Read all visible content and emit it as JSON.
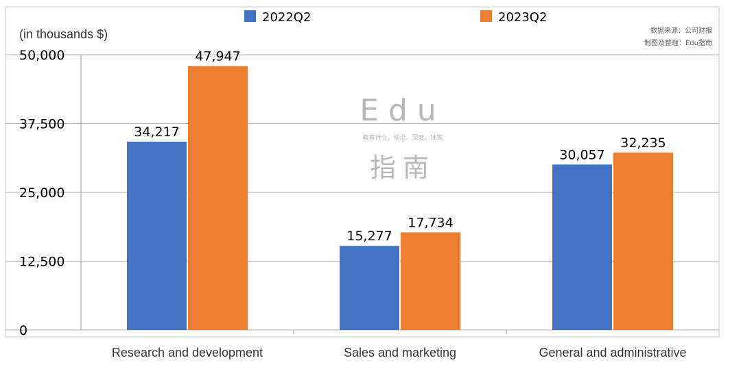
{
  "chart_data": {
    "type": "bar",
    "categories": [
      "Research and development",
      "Sales and marketing",
      "General and administrative"
    ],
    "series": [
      {
        "name": "2022Q2",
        "values": [
          34217,
          15277,
          30057
        ],
        "labels": [
          "34,217",
          "15,277",
          "30,057"
        ]
      },
      {
        "name": "2023Q2",
        "values": [
          47947,
          17734,
          32235
        ],
        "labels": [
          "47,947",
          "17,734",
          "32,235"
        ]
      }
    ],
    "ylabel": "(in thousands $)",
    "ylim": [
      0,
      50000
    ],
    "yticks": [
      0,
      12500,
      25000,
      37500,
      50000
    ],
    "ytick_labels": [
      "0",
      "12,500",
      "25,000",
      "37,500",
      "50,000"
    ],
    "grid": true,
    "legend_position": "top-center"
  },
  "colors": {
    "2022Q2": "#4472C4",
    "2023Q2": "#ED7D31",
    "grid": "#b0b0b0"
  },
  "source_note": {
    "line1": "数据来源：公司财报",
    "line2": "制图及整理：Edu指南"
  },
  "watermark": {
    "logo_text": "Edu",
    "tagline": "教育行业，前沿、深度、独家",
    "logo_cn": "指南"
  }
}
